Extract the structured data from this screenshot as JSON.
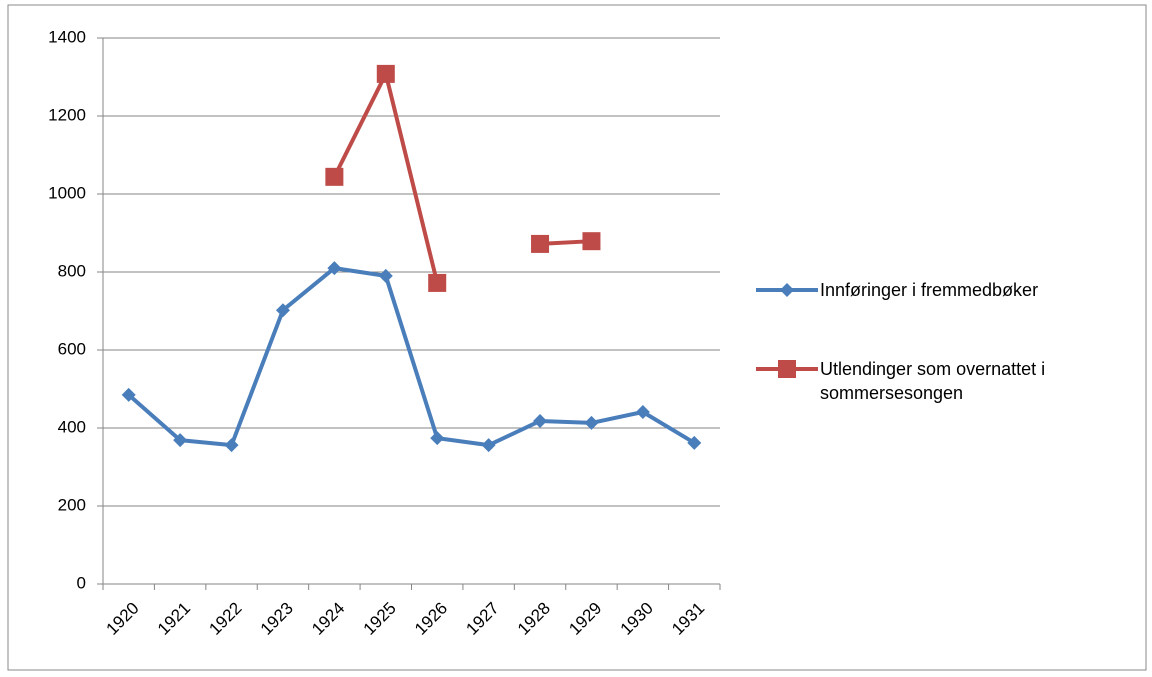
{
  "chart_data": {
    "type": "line",
    "categories": [
      "1920",
      "1921",
      "1922",
      "1923",
      "1924",
      "1925",
      "1926",
      "1927",
      "1928",
      "1929",
      "1930",
      "1931"
    ],
    "series": [
      {
        "name": "Innføringer i fremmedbøker",
        "color": "#4a7ebb",
        "marker": "diamond",
        "values": [
          485,
          369,
          356,
          702,
          810,
          790,
          374,
          356,
          418,
          413,
          441,
          362
        ]
      },
      {
        "name": "Utlendinger som overnattet i sommersesongen",
        "color": "#be4b48",
        "marker": "square",
        "values": [
          null,
          null,
          null,
          null,
          1044,
          1308,
          772,
          null,
          872,
          879,
          null,
          null
        ]
      }
    ],
    "ylim": [
      0,
      1400
    ],
    "yticks": [
      0,
      200,
      400,
      600,
      800,
      1000,
      1200,
      1400
    ],
    "grid": true,
    "legend": "right"
  }
}
